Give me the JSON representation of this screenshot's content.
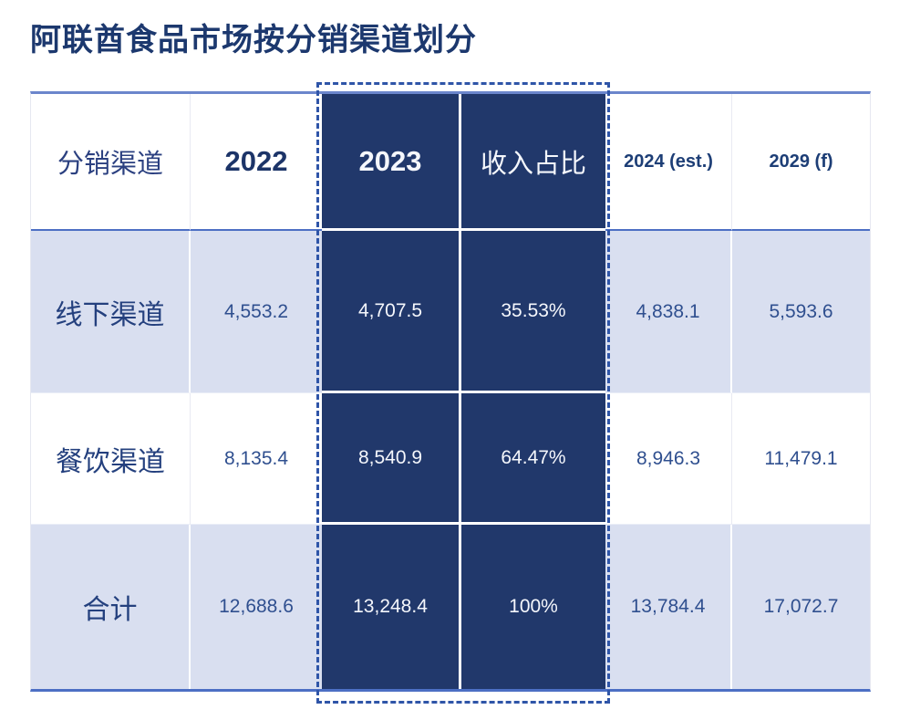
{
  "page": {
    "title": "阿联酋食品市场按分销渠道划分"
  },
  "colors": {
    "dark_navy_cell": "#21386B",
    "lavender_row": "#D9DFF0",
    "table_border_blue": "#4C6FC4",
    "dashed_highlight": "#2F55A8",
    "title_text": "#1C386E",
    "value_text": "#2F4F8F"
  },
  "table": {
    "columns": {
      "channel": "分销渠道",
      "y2022": "2022",
      "y2023": "2023",
      "revenue_share": "收入占比",
      "y2024": "2024 (est.)",
      "y2029": "2029 (f)"
    },
    "highlighted_columns": [
      "2023",
      "收入占比"
    ],
    "rows": [
      {
        "label": "线下渠道",
        "values": [
          "4,553.2",
          "4,707.5",
          "35.53%",
          "4,838.1",
          "5,593.6"
        ]
      },
      {
        "label": "餐饮渠道",
        "values": [
          "8,135.4",
          "8,540.9",
          "64.47%",
          "8,946.3",
          "11,479.1"
        ]
      },
      {
        "label": "合计",
        "values": [
          "12,688.6",
          "13,248.4",
          "100%",
          "13,784.4",
          "17,072.7"
        ]
      }
    ]
  }
}
